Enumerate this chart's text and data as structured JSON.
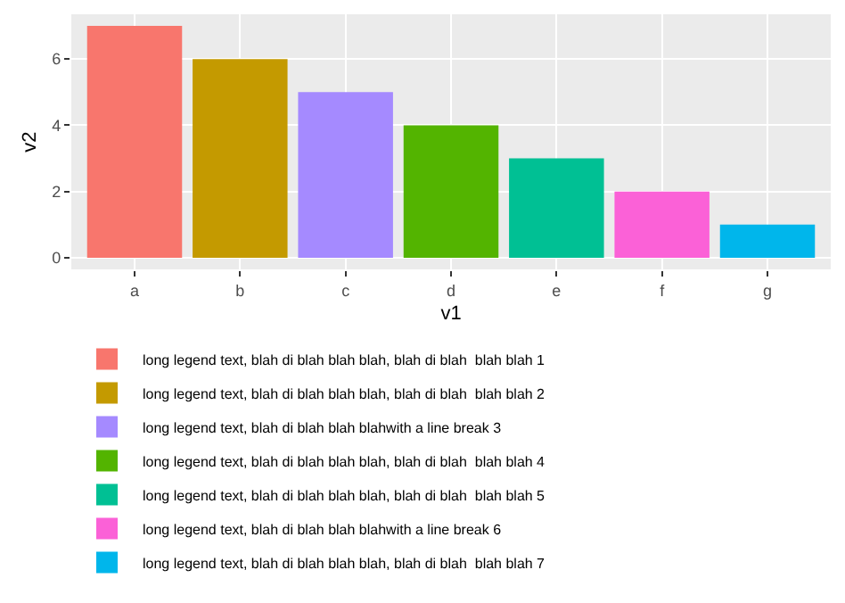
{
  "chart_data": {
    "type": "bar",
    "xlabel": "v1",
    "ylabel": "v2",
    "categories": [
      "a",
      "b",
      "c",
      "d",
      "e",
      "f",
      "g"
    ],
    "series": [
      {
        "name": "long legend text, blah di blah blah blah, blah di blah  blah blah 1",
        "color": "#f8766d",
        "values": [
          7,
          null,
          null,
          null,
          null,
          null,
          null
        ]
      },
      {
        "name": "long legend text, blah di blah blah blah, blah di blah  blah blah 2",
        "color": "#c49a00",
        "values": [
          null,
          6,
          null,
          null,
          null,
          null,
          null
        ]
      },
      {
        "name": "long legend text, blah di blah blah blahwith a line break 3",
        "color": "#a58aff",
        "values": [
          null,
          null,
          5,
          null,
          null,
          null,
          null
        ]
      },
      {
        "name": "long legend text, blah di blah blah blah, blah di blah  blah blah 4",
        "color": "#53b400",
        "values": [
          null,
          null,
          null,
          4,
          null,
          null,
          null
        ]
      },
      {
        "name": "long legend text, blah di blah blah blah, blah di blah  blah blah 5",
        "color": "#00c094",
        "values": [
          null,
          null,
          null,
          null,
          3,
          null,
          null
        ]
      },
      {
        "name": "long legend text, blah di blah blah blahwith a line break 6",
        "color": "#fb61d7",
        "values": [
          null,
          null,
          null,
          null,
          null,
          2,
          null
        ]
      },
      {
        "name": "long legend text, blah di blah blah blah, blah di blah  blah blah 7",
        "color": "#00b6eb",
        "values": [
          null,
          null,
          null,
          null,
          null,
          null,
          1
        ]
      }
    ],
    "ylim": [
      -0.35,
      7.35
    ],
    "yticks": [
      0,
      2,
      4,
      6
    ],
    "grid": true,
    "legend": "bottom"
  }
}
